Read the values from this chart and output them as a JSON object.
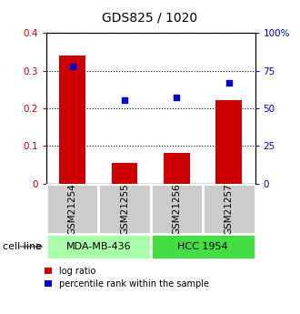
{
  "title": "GDS825 / 1020",
  "samples": [
    "GSM21254",
    "GSM21255",
    "GSM21256",
    "GSM21257"
  ],
  "log_ratio": [
    0.34,
    0.055,
    0.082,
    0.222
  ],
  "percentile_rank": [
    0.78,
    0.555,
    0.575,
    0.67
  ],
  "cell_lines": [
    {
      "label": "MDA-MB-436",
      "samples": [
        0,
        1
      ],
      "color": "#aaffaa"
    },
    {
      "label": "HCC 1954",
      "samples": [
        2,
        3
      ],
      "color": "#44dd44"
    }
  ],
  "ylim_left": [
    0,
    0.4
  ],
  "ylim_right": [
    0,
    1.0
  ],
  "yticks_left": [
    0,
    0.1,
    0.2,
    0.3,
    0.4
  ],
  "ytick_labels_left": [
    "0",
    "0.1",
    "0.2",
    "0.3",
    "0.4"
  ],
  "yticks_right": [
    0,
    0.25,
    0.5,
    0.75,
    1.0
  ],
  "ytick_labels_right": [
    "0",
    "25",
    "50",
    "75",
    "100%"
  ],
  "bar_color": "#cc0000",
  "scatter_color": "#0000cc",
  "bar_width": 0.5,
  "legend_bar_label": "log ratio",
  "legend_scatter_label": "percentile rank within the sample",
  "cell_line_label": "cell line",
  "arrow_color": "#888888",
  "sample_box_color": "#cccccc",
  "title_fontsize": 10,
  "axis_fontsize": 7.5,
  "tick_fontsize": 7.5,
  "legend_fontsize": 7,
  "cell_line_fontsize": 8
}
